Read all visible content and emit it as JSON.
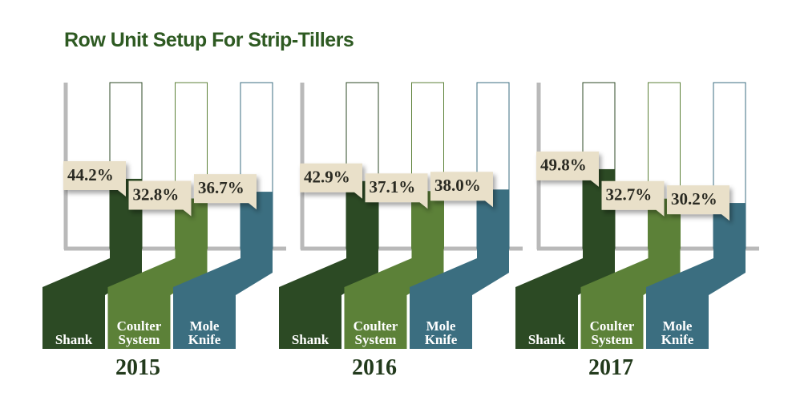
{
  "chart_data": {
    "type": "bar",
    "title": "Row Unit Setup For Strip-Tillers",
    "categories": [
      "2015",
      "2016",
      "2017"
    ],
    "series": [
      {
        "name": "Shank",
        "color": "#2c4a24",
        "values": [
          44.2,
          42.9,
          49.8
        ],
        "value_labels": [
          "44.2%",
          "42.9%",
          "49.8%"
        ]
      },
      {
        "name": "Coulter System",
        "color": "#5c8138",
        "values": [
          32.8,
          37.1,
          32.7
        ],
        "value_labels": [
          "32.8%",
          "37.1%",
          "32.7%"
        ]
      },
      {
        "name": "Mole Knife",
        "color": "#3b6e80",
        "values": [
          36.7,
          38.0,
          30.2
        ],
        "value_labels": [
          "36.7%",
          "38.0%",
          "30.2%"
        ]
      }
    ],
    "ylim": [
      0,
      100
    ]
  }
}
